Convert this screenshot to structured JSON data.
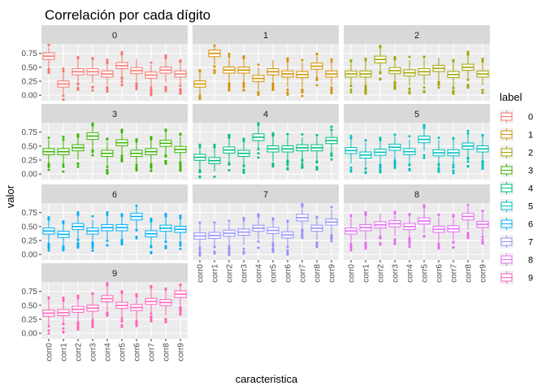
{
  "chart_data": {
    "type": "boxplot-facets",
    "title": "Correlación por cada dígito",
    "xlabel": "caracteristica",
    "ylabel": "valor",
    "y_ticks": [
      0.0,
      0.25,
      0.5,
      0.75
    ],
    "y_tick_labels": [
      "0.00",
      "0.25",
      "0.50",
      "0.75"
    ],
    "ylim": [
      -0.1,
      0.92
    ],
    "categories": [
      "corr0",
      "corr1",
      "corr2",
      "corr3",
      "corr4",
      "corr5",
      "corr6",
      "corr7",
      "corr8",
      "corr9"
    ],
    "legend": {
      "title": "label",
      "entries": [
        {
          "label": "0",
          "color": "#F8766D"
        },
        {
          "label": "1",
          "color": "#D89000"
        },
        {
          "label": "2",
          "color": "#A3A500"
        },
        {
          "label": "3",
          "color": "#39B600"
        },
        {
          "label": "4",
          "color": "#00BF7D"
        },
        {
          "label": "5",
          "color": "#00BFC4"
        },
        {
          "label": "6",
          "color": "#00B0F6"
        },
        {
          "label": "7",
          "color": "#9590FF"
        },
        {
          "label": "8",
          "color": "#E76BF3"
        },
        {
          "label": "9",
          "color": "#FF62BC"
        }
      ]
    },
    "panels": [
      {
        "label": "0",
        "medians": [
          0.7,
          0.2,
          0.42,
          0.42,
          0.38,
          0.53,
          0.44,
          0.36,
          0.45,
          0.38
        ]
      },
      {
        "label": "1",
        "medians": [
          0.2,
          0.75,
          0.45,
          0.45,
          0.3,
          0.42,
          0.38,
          0.37,
          0.52,
          0.38
        ]
      },
      {
        "label": "2",
        "medians": [
          0.38,
          0.38,
          0.64,
          0.44,
          0.4,
          0.42,
          0.48,
          0.37,
          0.5,
          0.38
        ]
      },
      {
        "label": "3",
        "medians": [
          0.4,
          0.4,
          0.47,
          0.68,
          0.37,
          0.56,
          0.37,
          0.4,
          0.55,
          0.44
        ]
      },
      {
        "label": "4",
        "medians": [
          0.3,
          0.24,
          0.43,
          0.37,
          0.66,
          0.45,
          0.45,
          0.47,
          0.47,
          0.6
        ]
      },
      {
        "label": "5",
        "medians": [
          0.42,
          0.34,
          0.39,
          0.48,
          0.4,
          0.62,
          0.38,
          0.38,
          0.5,
          0.45
        ]
      },
      {
        "label": "6",
        "medians": [
          0.42,
          0.36,
          0.5,
          0.42,
          0.48,
          0.48,
          0.68,
          0.37,
          0.47,
          0.45
        ]
      },
      {
        "label": "7",
        "medians": [
          0.33,
          0.34,
          0.38,
          0.4,
          0.47,
          0.43,
          0.35,
          0.66,
          0.47,
          0.58
        ]
      },
      {
        "label": "8",
        "medians": [
          0.42,
          0.48,
          0.53,
          0.55,
          0.5,
          0.6,
          0.45,
          0.46,
          0.68,
          0.54
        ]
      },
      {
        "label": "9",
        "medians": [
          0.36,
          0.37,
          0.43,
          0.45,
          0.62,
          0.5,
          0.46,
          0.57,
          0.55,
          0.7
        ]
      }
    ]
  }
}
